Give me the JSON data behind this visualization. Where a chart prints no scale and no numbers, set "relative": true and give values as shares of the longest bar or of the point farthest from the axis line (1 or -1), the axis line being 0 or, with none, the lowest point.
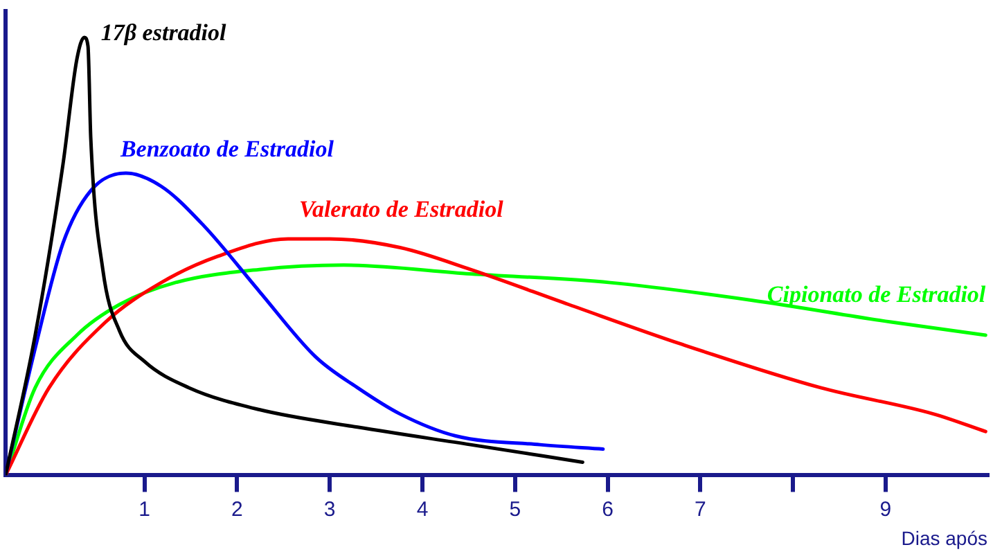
{
  "chart_data": {
    "type": "line",
    "relative": true,
    "xlabel": "Dias após",
    "xlim": [
      -0.5,
      10.1
    ],
    "xticks": [
      1,
      2,
      3,
      4,
      5,
      6,
      7,
      {
        "value": 8,
        "label": null
      },
      9
    ],
    "grid": false,
    "legend": false,
    "marker": "none",
    "line_style": "solid",
    "series": [
      {
        "name": "17β estradiol",
        "color": "#000000",
        "x": [
          -0.5,
          -0.18,
          0.12,
          0.27,
          0.35,
          0.39,
          0.42,
          0.55,
          0.73,
          1.0,
          1.48,
          2.24,
          3.3,
          4.52,
          5.73
        ],
        "values": [
          0,
          0.32,
          0.71,
          0.95,
          1,
          0.98,
          0.77,
          0.47,
          0.33,
          0.26,
          0.2,
          0.15,
          0.11,
          0.07,
          0.03
        ]
      },
      {
        "name": "Benzoato de Estradiol",
        "color": "#0000ff",
        "x": [
          -0.5,
          -0.18,
          0.12,
          0.42,
          0.8,
          1.18,
          1.64,
          2.24,
          2.85,
          3.3,
          3.76,
          4.36,
          5.27,
          5.95
        ],
        "values": [
          0,
          0.29,
          0.53,
          0.65,
          0.69,
          0.66,
          0.57,
          0.42,
          0.27,
          0.2,
          0.14,
          0.09,
          0.07,
          0.06
        ]
      },
      {
        "name": "Valerato de Estradiol",
        "color": "#ff0000",
        "x": [
          -0.5,
          -0.03,
          0.58,
          1.18,
          1.79,
          2.55,
          3.0,
          3.76,
          4.52,
          5.58,
          6.79,
          8.3,
          9.52,
          10.08
        ],
        "values": [
          0,
          0.2,
          0.35,
          0.44,
          0.5,
          0.54,
          0.54,
          0.52,
          0.47,
          0.39,
          0.3,
          0.2,
          0.14,
          0.1
        ]
      },
      {
        "name": "Cipionato de Estradiol",
        "color": "#00ff00",
        "x": [
          -0.5,
          -0.18,
          0.27,
          0.73,
          1.33,
          2.24,
          3.15,
          4.52,
          6.03,
          7.55,
          9.06,
          10.08
        ],
        "values": [
          0,
          0.2,
          0.32,
          0.39,
          0.44,
          0.47,
          0.48,
          0.46,
          0.44,
          0.4,
          0.35,
          0.32
        ]
      }
    ]
  }
}
